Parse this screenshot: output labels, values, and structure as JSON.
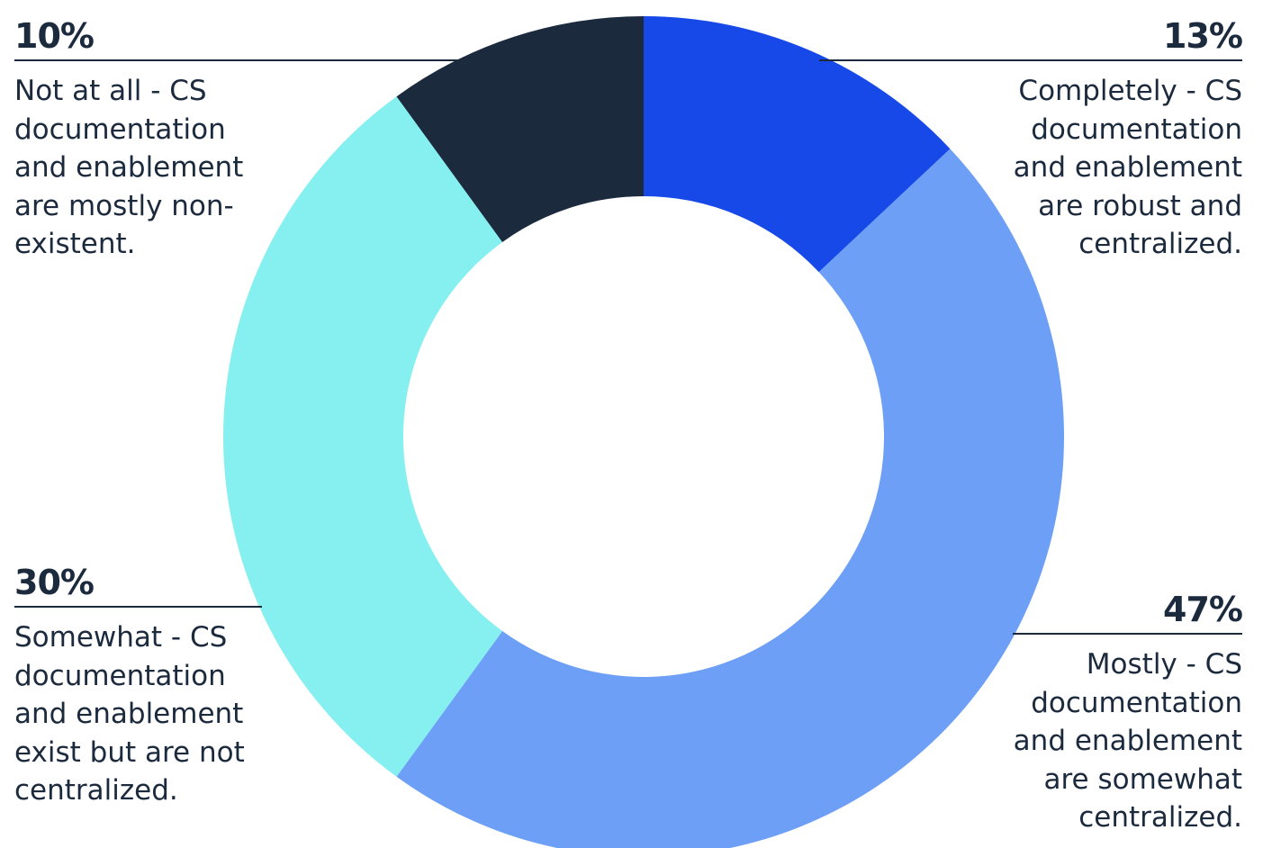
{
  "chart_data": {
    "type": "pie",
    "donut": true,
    "start_angle_deg": 0,
    "direction": "clockwise",
    "slices": [
      {
        "label": "Completely - CS documentation and enablement are robust and centralized.",
        "percent_label": "13%",
        "value": 13,
        "color": "#1749e8"
      },
      {
        "label": "Mostly - CS documentation and enablement are somewhat centralized.",
        "percent_label": "47%",
        "value": 47,
        "color": "#6c9ff5"
      },
      {
        "label": "Somewhat - CS documentation and enablement exist but are not centralized.",
        "percent_label": "30%",
        "value": 30,
        "color": "#86f0f0"
      },
      {
        "label": "Not at all - CS documentation and enablement are mostly non-existent.",
        "percent_label": "10%",
        "value": 10,
        "color": "#1c2a3e"
      }
    ]
  },
  "callouts": {
    "completely": {
      "pct": "13%",
      "desc": "Completely - CS\ndocumentation\nand enablement\nare robust and\ncentralized."
    },
    "mostly": {
      "pct": "47%",
      "desc": "Mostly - CS\ndocumentation\nand enablement\nare somewhat\ncentralized."
    },
    "somewhat": {
      "pct": "30%",
      "desc": "Somewhat - CS\ndocumentation\nand enablement\nexist but are not\ncentralized."
    },
    "not_at_all": {
      "pct": "10%",
      "desc": "Not at all - CS\ndocumentation\nand enablement\nare mostly non-\nexistent."
    }
  }
}
